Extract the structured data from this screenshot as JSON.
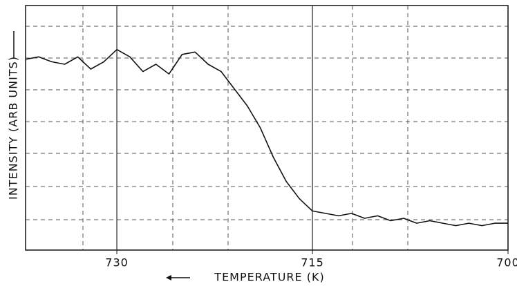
{
  "chart_data": {
    "type": "line",
    "xlabel": "TEMPERATURE (K)",
    "ylabel": "INTENSITY (ARB UNITS)",
    "x": [
      737,
      736,
      735,
      734,
      733,
      732,
      731,
      730,
      729,
      728,
      727,
      726,
      725,
      724,
      723,
      722,
      721,
      720,
      719,
      718,
      717,
      716,
      715,
      714,
      713,
      712,
      711,
      710,
      709,
      708,
      707,
      706,
      705,
      704,
      703,
      702,
      701,
      700
    ],
    "values": [
      7.8,
      7.9,
      7.7,
      7.6,
      7.9,
      7.4,
      7.7,
      8.2,
      7.9,
      7.3,
      7.6,
      7.2,
      8.0,
      8.1,
      7.6,
      7.3,
      6.6,
      5.9,
      5.0,
      3.8,
      2.8,
      2.1,
      1.6,
      1.5,
      1.4,
      1.5,
      1.3,
      1.4,
      1.2,
      1.3,
      1.1,
      1.2,
      1.1,
      1.0,
      1.1,
      1.0,
      1.1,
      1.1
    ],
    "color": "#111111",
    "xlim": [
      737,
      700
    ],
    "xticks": [
      730,
      715,
      700
    ],
    "ylim": [
      0,
      10
    ],
    "grid": true
  }
}
